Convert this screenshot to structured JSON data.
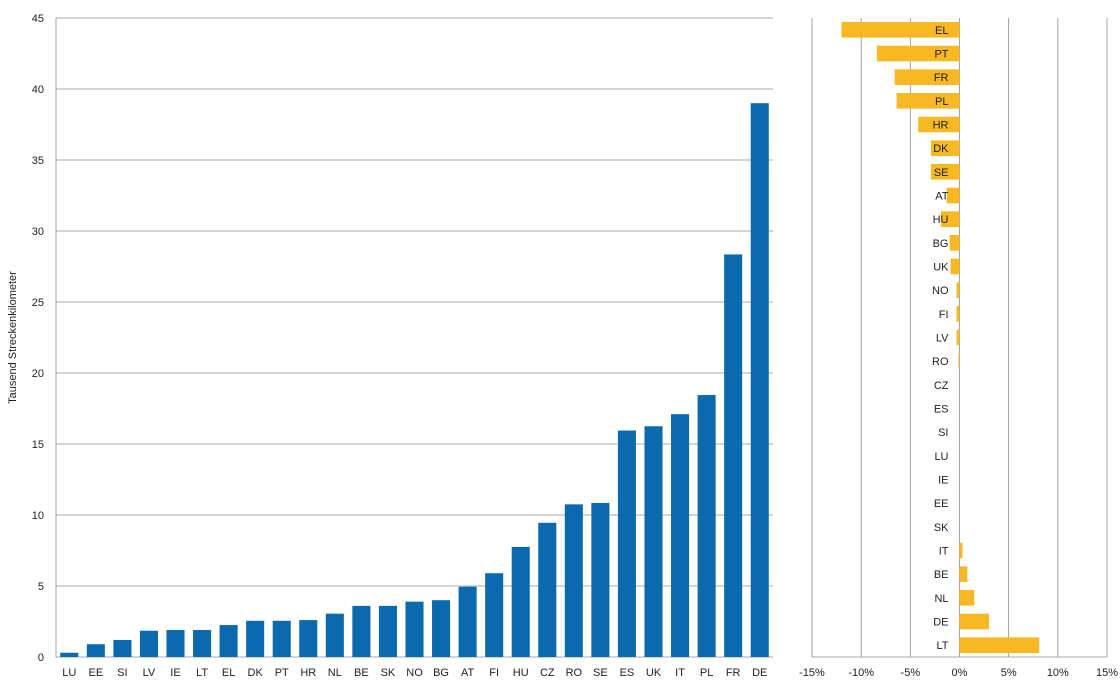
{
  "chart_data": [
    {
      "type": "bar",
      "orientation": "vertical",
      "ylabel": "Tausend Streckenkilometer",
      "ylim": [
        0,
        45
      ],
      "yticks": [
        0,
        5,
        10,
        15,
        20,
        25,
        30,
        35,
        40,
        45
      ],
      "grid": true,
      "color": "#0a6aad",
      "categories": [
        "LU",
        "EE",
        "SI",
        "LV",
        "IE",
        "LT",
        "EL",
        "DK",
        "PT",
        "HR",
        "NL",
        "BE",
        "SK",
        "NO",
        "BG",
        "AT",
        "FI",
        "HU",
        "CZ",
        "RO",
        "SE",
        "ES",
        "UK",
        "IT",
        "PL",
        "FR",
        "DE"
      ],
      "values": [
        0.3,
        0.9,
        1.2,
        1.85,
        1.9,
        1.9,
        2.25,
        2.55,
        2.55,
        2.6,
        3.05,
        3.6,
        3.6,
        3.9,
        4.0,
        4.95,
        5.9,
        7.75,
        9.45,
        10.75,
        10.85,
        15.95,
        16.25,
        17.1,
        18.45,
        28.35,
        39.0
      ]
    },
    {
      "type": "bar",
      "orientation": "horizontal",
      "xlim": [
        -15,
        15
      ],
      "xticks": [
        "-15%",
        "-10%",
        "-5%",
        "0%",
        "5%",
        "10%",
        "15%"
      ],
      "xtick_values": [
        -15,
        -10,
        -5,
        0,
        5,
        10,
        15
      ],
      "grid": true,
      "color": "#f7b823",
      "categories": [
        "EL",
        "PT",
        "FR",
        "PL",
        "HR",
        "DK",
        "SE",
        "AT",
        "HU",
        "BG",
        "UK",
        "NO",
        "FI",
        "LV",
        "RO",
        "CZ",
        "ES",
        "SI",
        "LU",
        "IE",
        "EE",
        "SK",
        "IT",
        "BE",
        "NL",
        "DE",
        "LT"
      ],
      "values": [
        -12.0,
        -8.4,
        -6.6,
        -6.4,
        -4.2,
        -2.9,
        -2.9,
        -1.3,
        -1.9,
        -1.0,
        -0.9,
        -0.3,
        -0.3,
        -0.3,
        -0.1,
        0,
        0,
        0,
        0,
        0,
        0,
        0,
        0.3,
        0.8,
        1.5,
        3.0,
        8.1
      ]
    }
  ]
}
